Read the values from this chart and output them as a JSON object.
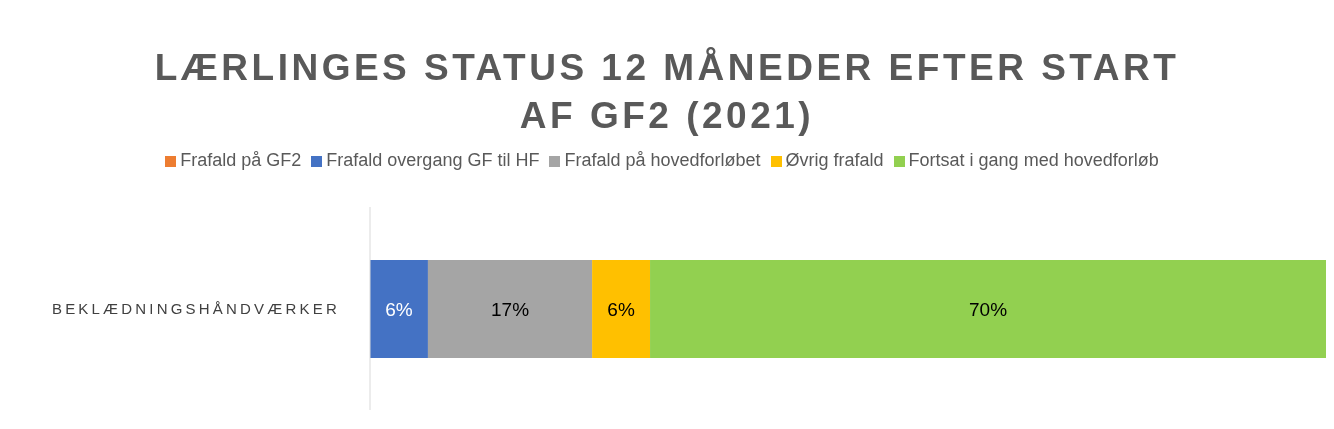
{
  "chart_data": {
    "type": "bar",
    "orientation": "horizontal",
    "stacked": true,
    "title": "LÆRLINGES STATUS 12 MÅNEDER EFTER START AF GF2 (2021)",
    "categories": [
      "BEKLÆDNINGSHÅNDVÆRKER"
    ],
    "xlim": [
      0,
      99
    ],
    "tick_labels": "y",
    "legend": "top",
    "grid": false,
    "series": [
      {
        "name": "Frafald på GF2",
        "color": "#ed7d31",
        "values": [
          0
        ],
        "value_labels": [
          null
        ]
      },
      {
        "name": "Frafald overgang GF til HF",
        "color": "#4472c4",
        "values": [
          6
        ],
        "value_labels": [
          "6%"
        ]
      },
      {
        "name": "Frafald på hovedforløbet",
        "color": "#a5a5a5",
        "values": [
          17
        ],
        "value_labels": [
          "17%"
        ]
      },
      {
        "name": "Øvrig frafald",
        "color": "#ffc000",
        "values": [
          6
        ],
        "value_labels": [
          "6%"
        ]
      },
      {
        "name": "Fortsat i gang med hovedforløb",
        "color": "#92d050",
        "values": [
          70
        ],
        "value_labels": [
          "70%"
        ]
      }
    ]
  }
}
